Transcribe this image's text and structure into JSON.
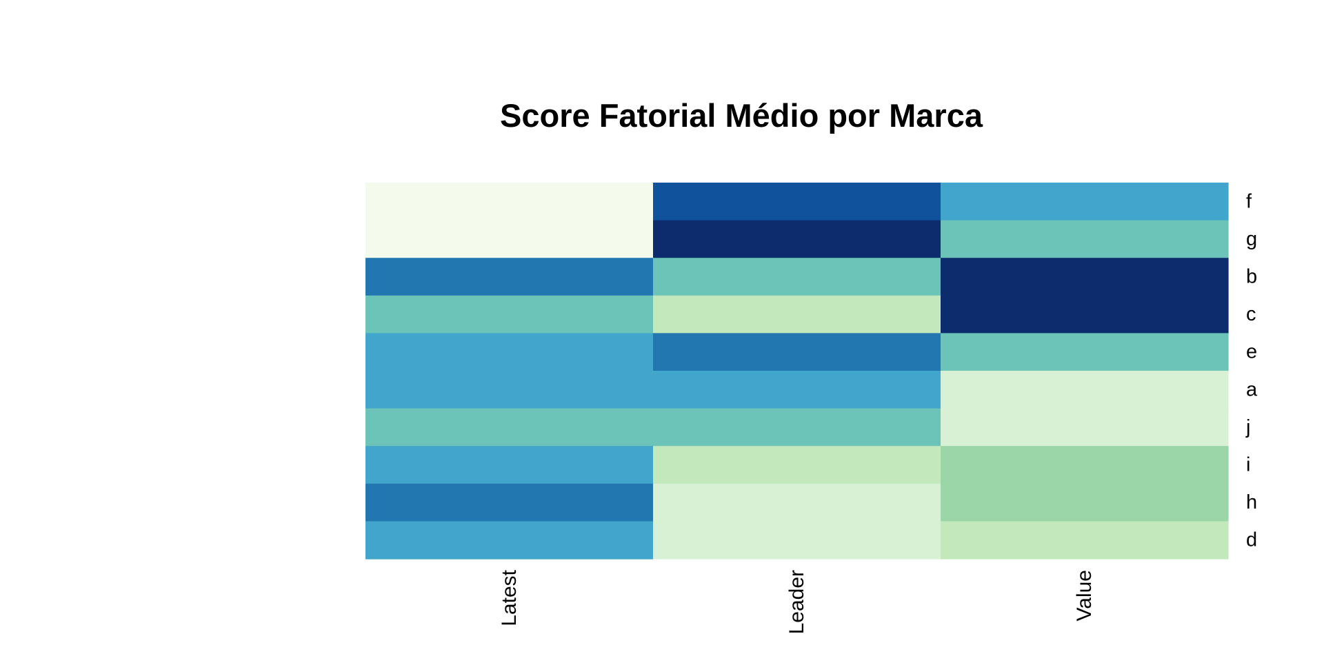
{
  "chart_data": {
    "type": "heatmap",
    "title": "Score Fatorial Médio por Marca",
    "xlabel": "",
    "ylabel": "",
    "columns": [
      "Latest",
      "Leader",
      "Value"
    ],
    "rows": [
      "f",
      "g",
      "b",
      "c",
      "e",
      "a",
      "j",
      "i",
      "h",
      "d"
    ],
    "values": [
      [
        1,
        8,
        6
      ],
      [
        1,
        9,
        5
      ],
      [
        7,
        5,
        9
      ],
      [
        5,
        3,
        9
      ],
      [
        6,
        7,
        5
      ],
      [
        6,
        6,
        2
      ],
      [
        5,
        5,
        2
      ],
      [
        6,
        3,
        4
      ],
      [
        7,
        2,
        4
      ],
      [
        6,
        2,
        3
      ]
    ],
    "color_scale": {
      "name": "GnBu",
      "levels": [
        "#f7fcf0",
        "#e0f3db",
        "#ccebc5",
        "#a8ddb5",
        "#7bccc4",
        "#4eb3d3",
        "#2b8cbe",
        "#0868ac",
        "#084081"
      ],
      "rendered": [
        "#f4faec",
        "#d8f0d3",
        "#c2e8bb",
        "#9ad6a7",
        "#6cc3b7",
        "#42a5cb",
        "#2377b1",
        "#10529c",
        "#0c2c6e"
      ]
    },
    "legend": "none",
    "grid": false
  }
}
